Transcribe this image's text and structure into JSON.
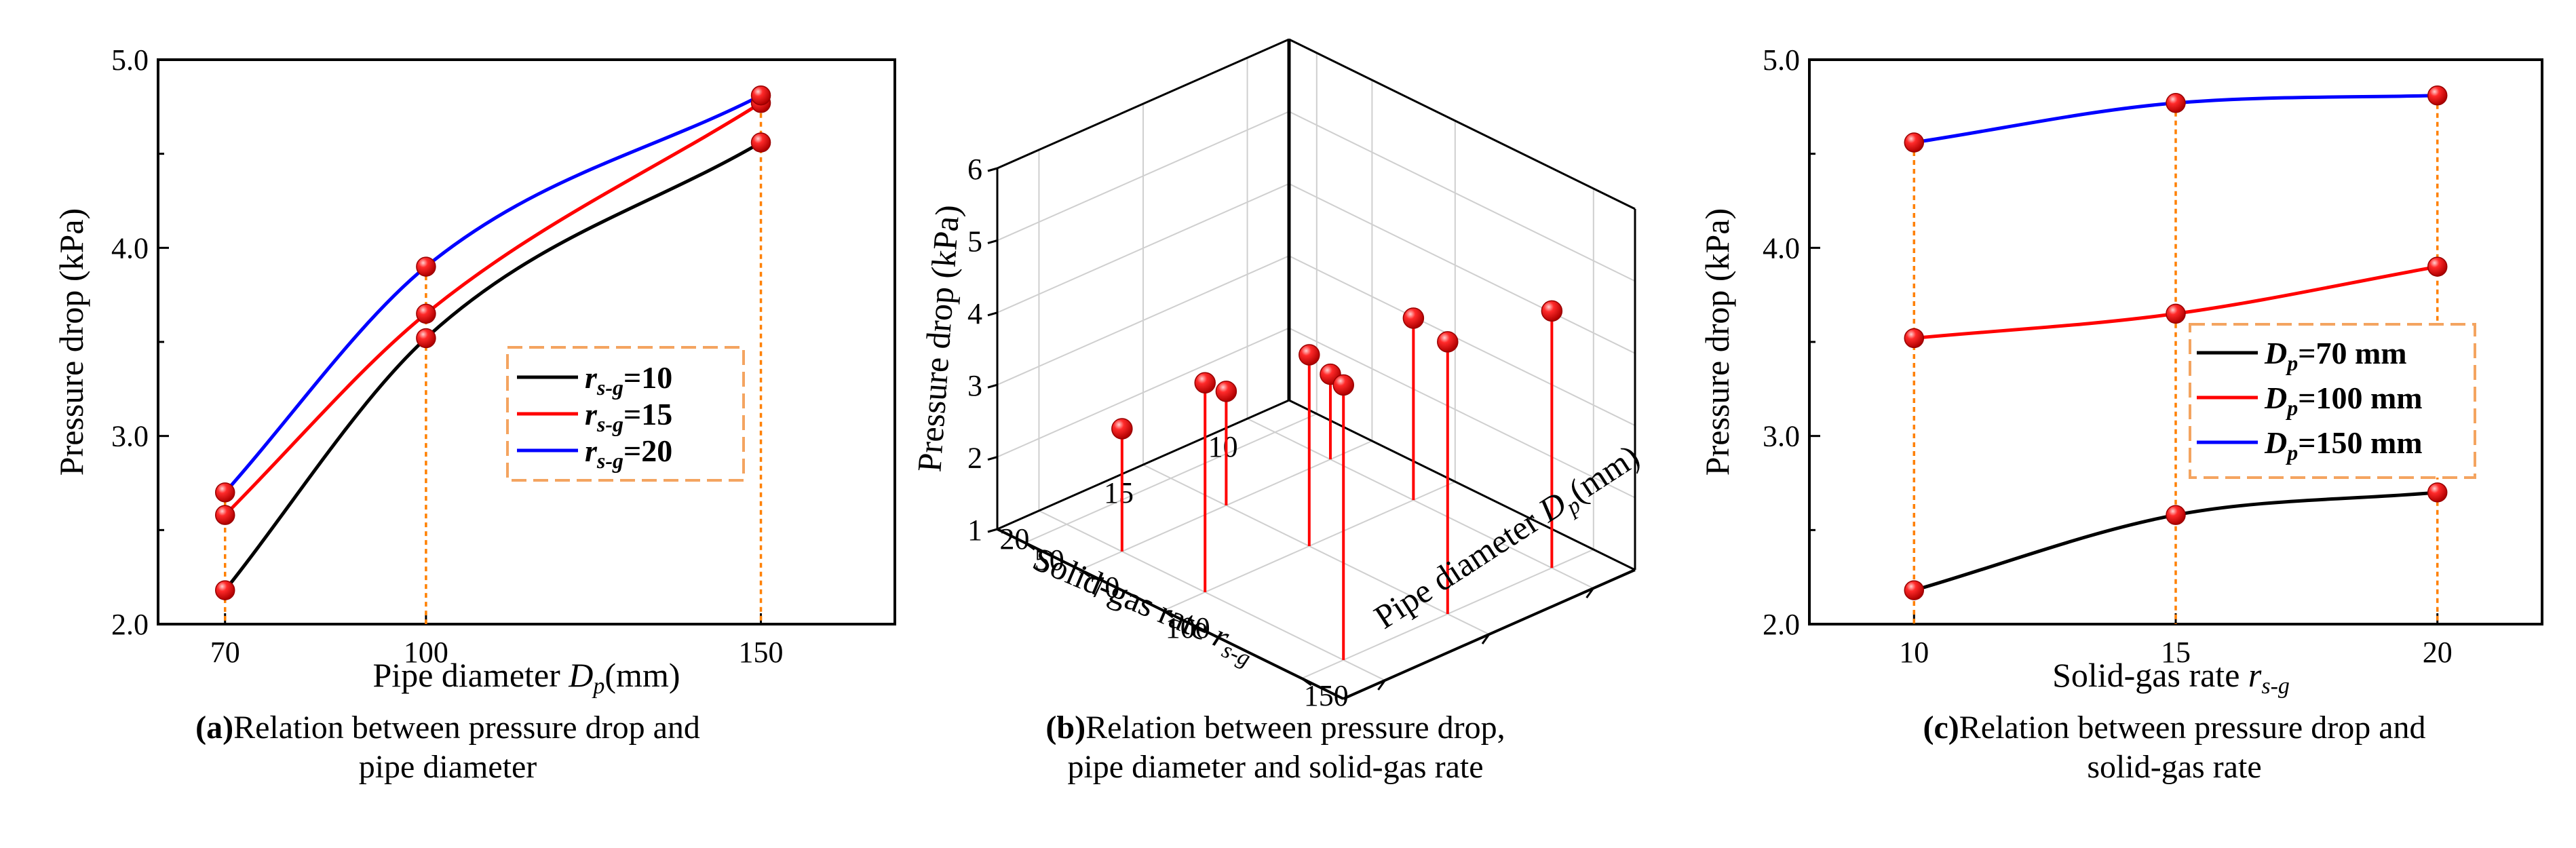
{
  "chart_data": [
    {
      "type": "line",
      "panel": "a",
      "title": "",
      "xlabel_main": "Pipe diameter ",
      "xlabel_var": "D",
      "xlabel_sub": "p",
      "xlabel_unit": "(mm)",
      "ylabel": "Pressure drop (kPa)",
      "caption_bold": "(a)",
      "caption_line1": "Relation between pressure drop and",
      "caption_line2": "pipe diameter",
      "x": [
        70,
        100,
        150
      ],
      "xticks": [
        "70",
        "100",
        "150"
      ],
      "yticks": [
        "2.0",
        "3.0",
        "4.0",
        "5.0"
      ],
      "xlim": [
        60,
        170
      ],
      "ylim": [
        2.0,
        5.0
      ],
      "series": [
        {
          "name": "r_s-g=10",
          "leg_var": "r",
          "leg_sub": "s-g",
          "leg_val": "=10",
          "color": "#000000",
          "values": [
            2.18,
            3.52,
            4.56
          ]
        },
        {
          "name": "r_s-g=15",
          "leg_var": "r",
          "leg_sub": "s-g",
          "leg_val": "=15",
          "color": "#ff0000",
          "values": [
            2.58,
            3.65,
            4.77
          ]
        },
        {
          "name": "r_s-g=20",
          "leg_var": "r",
          "leg_sub": "s-g",
          "leg_val": "=20",
          "color": "#0000ff",
          "values": [
            2.7,
            3.9,
            4.81
          ]
        }
      ],
      "marker_color": "#ff0000",
      "dropline_color": "#ff8000",
      "legend_border_color": "#f4a460",
      "legend_position": "center-right"
    },
    {
      "type": "scatter3d-stem",
      "panel": "b",
      "zlabel": "Pressure drop (kPa)",
      "xlabel_main": "Solid-gas rate ",
      "xlabel_var": "r",
      "xlabel_sub": "s-g",
      "ylabel_main": "Pipe diameter ",
      "ylabel_var": "D",
      "ylabel_sub": "p",
      "ylabel_unit": "(mm)",
      "caption_bold": "(b)",
      "caption_line1": "Relation between pressure drop,",
      "caption_line2": "pipe diameter and solid-gas rate",
      "zticks": [
        "1",
        "2",
        "3",
        "4",
        "5",
        "6"
      ],
      "xticks": [
        "10",
        "15",
        "20"
      ],
      "yticks": [
        "50",
        "70",
        "100",
        "150"
      ],
      "zlim": [
        1,
        6
      ],
      "points": [
        {
          "rate": 10,
          "diameter": 70,
          "pressure": 2.18
        },
        {
          "rate": 10,
          "diameter": 100,
          "pressure": 3.52
        },
        {
          "rate": 10,
          "diameter": 150,
          "pressure": 4.56
        },
        {
          "rate": 15,
          "diameter": 70,
          "pressure": 2.58
        },
        {
          "rate": 15,
          "diameter": 100,
          "pressure": 3.65
        },
        {
          "rate": 15,
          "diameter": 150,
          "pressure": 4.77
        },
        {
          "rate": 20,
          "diameter": 70,
          "pressure": 2.7
        },
        {
          "rate": 20,
          "diameter": 100,
          "pressure": 3.9
        },
        {
          "rate": 20,
          "diameter": 150,
          "pressure": 4.81
        }
      ],
      "marker_color": "#ff0000",
      "stem_color": "#ff0000"
    },
    {
      "type": "line",
      "panel": "c",
      "xlabel_main": "Solid-gas rate ",
      "xlabel_var": "r",
      "xlabel_sub": "s-g",
      "ylabel": "Pressure drop (kPa)",
      "caption_bold": "(c)",
      "caption_line1": "Relation between pressure drop and",
      "caption_line2": "solid-gas rate",
      "x": [
        10,
        15,
        20
      ],
      "xticks": [
        "10",
        "15",
        "20"
      ],
      "yticks": [
        "2.0",
        "3.0",
        "4.0",
        "5.0"
      ],
      "xlim": [
        8,
        22
      ],
      "ylim": [
        2.0,
        5.0
      ],
      "series": [
        {
          "name": "Dp=70 mm",
          "leg_var": "D",
          "leg_sub": "p",
          "leg_val": "=70 mm",
          "color": "#000000",
          "values": [
            2.18,
            2.58,
            2.7
          ]
        },
        {
          "name": "Dp=100 mm",
          "leg_var": "D",
          "leg_sub": "p",
          "leg_val": "=100 mm",
          "color": "#ff0000",
          "values": [
            3.52,
            3.65,
            3.9
          ]
        },
        {
          "name": "Dp=150 mm",
          "leg_var": "D",
          "leg_sub": "p",
          "leg_val": "=150 mm",
          "color": "#0000ff",
          "values": [
            4.56,
            4.77,
            4.81
          ]
        }
      ],
      "marker_color": "#ff0000",
      "dropline_color": "#ff8000",
      "legend_border_color": "#f4a460",
      "legend_position": "center-right"
    }
  ]
}
